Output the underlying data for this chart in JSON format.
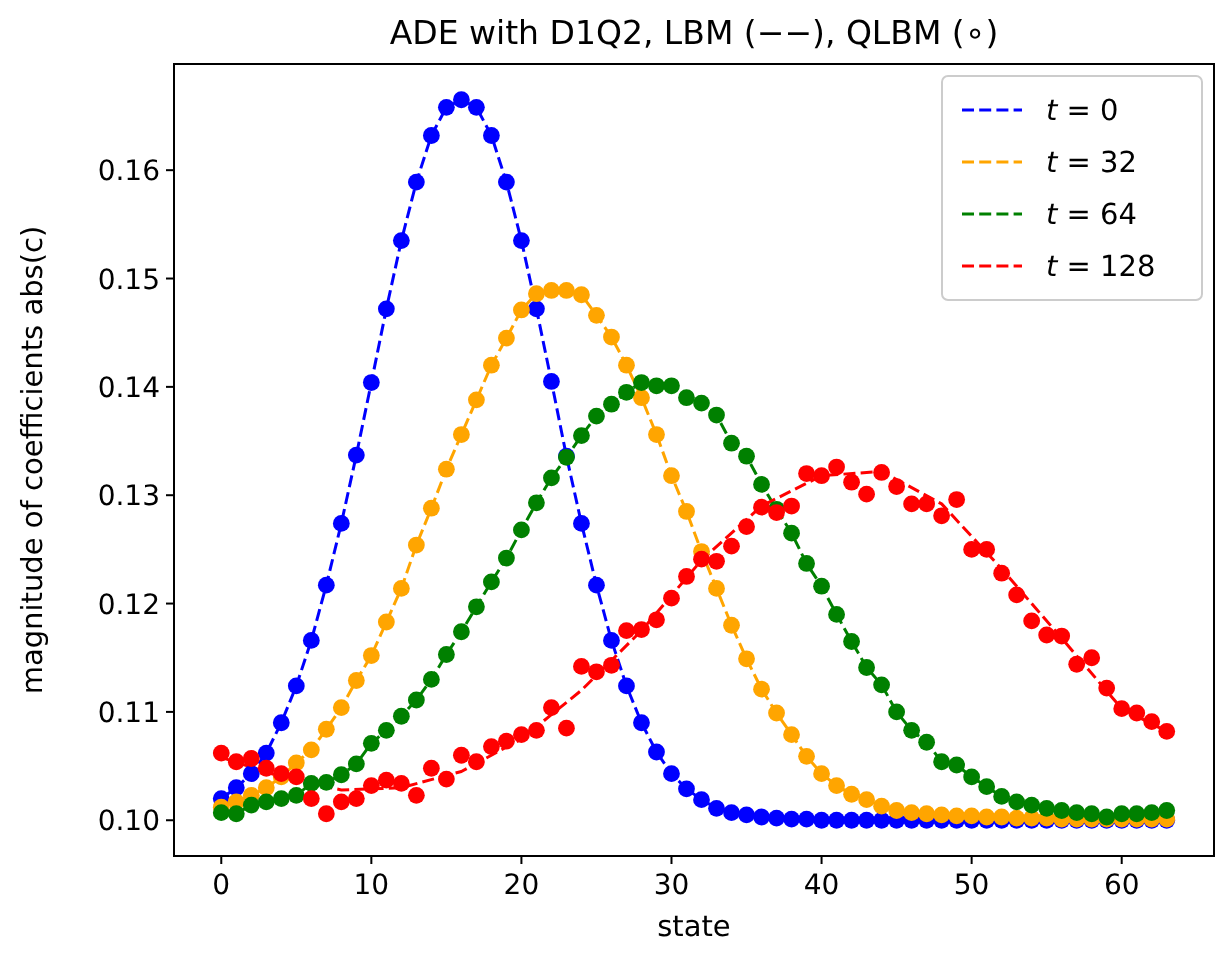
{
  "chart_data": {
    "type": "line",
    "title": "ADE with D1Q2, LBM (−−), QLBM (∘)",
    "xlabel": "state",
    "ylabel": "magnitude of coefficients abs(c)",
    "x": [
      0,
      1,
      2,
      3,
      4,
      5,
      6,
      7,
      8,
      9,
      10,
      11,
      12,
      13,
      14,
      15,
      16,
      17,
      18,
      19,
      20,
      21,
      22,
      23,
      24,
      25,
      26,
      27,
      28,
      29,
      30,
      31,
      32,
      33,
      34,
      35,
      36,
      37,
      38,
      39,
      40,
      41,
      42,
      43,
      44,
      45,
      46,
      47,
      48,
      49,
      50,
      51,
      52,
      53,
      54,
      55,
      56,
      57,
      58,
      59,
      60,
      61,
      62,
      63
    ],
    "xlim": [
      -3.15,
      66.15
    ],
    "xticks": [
      0,
      10,
      20,
      30,
      40,
      50,
      60
    ],
    "ylim": [
      0.0967,
      0.1698
    ],
    "yticks": [
      {
        "value": 0.1,
        "label": "0.10"
      },
      {
        "value": 0.11,
        "label": "0.11"
      },
      {
        "value": 0.12,
        "label": "0.12"
      },
      {
        "value": 0.13,
        "label": "0.13"
      },
      {
        "value": 0.14,
        "label": "0.14"
      },
      {
        "value": 0.15,
        "label": "0.15"
      },
      {
        "value": 0.16,
        "label": "0.16"
      }
    ],
    "grid": false,
    "legend": "top right",
    "series": [
      {
        "name": "t = 0",
        "color": "#0000ff",
        "line_style": "dashed",
        "marker": "none",
        "values": [
          0.102,
          0.103,
          0.1043,
          0.1062,
          0.109,
          0.1124,
          0.1166,
          0.1217,
          0.1274,
          0.1337,
          0.1404,
          0.1472,
          0.1535,
          0.1589,
          0.1632,
          0.1658,
          0.1665,
          0.1658,
          0.1632,
          0.1589,
          0.1535,
          0.1472,
          0.1405,
          0.1336,
          0.1274,
          0.1217,
          0.1166,
          0.1124,
          0.109,
          0.1063,
          0.1043,
          0.1029,
          0.1019,
          0.1011,
          0.1007,
          0.1005,
          0.1003,
          0.1002,
          0.1001,
          0.1001,
          0.1,
          0.1,
          0.1,
          0.1,
          0.1,
          0.1,
          0.1,
          0.1,
          0.1,
          0.1,
          0.1,
          0.1,
          0.1,
          0.1,
          0.1,
          0.1,
          0.1,
          0.1,
          0.1,
          0.1,
          0.1,
          0.1,
          0.1,
          0.1
        ]
      },
      {
        "name": "t = 32",
        "color": "#ffa500",
        "line_style": "dashed",
        "marker": "none",
        "values": [
          0.1012,
          0.1017,
          0.1023,
          0.103,
          0.104,
          0.1053,
          0.1065,
          0.1084,
          0.1104,
          0.1129,
          0.1152,
          0.1183,
          0.1214,
          0.1254,
          0.1288,
          0.1324,
          0.1356,
          0.1388,
          0.142,
          0.1445,
          0.1471,
          0.1486,
          0.1489,
          0.1489,
          0.1485,
          0.1466,
          0.1446,
          0.142,
          0.139,
          0.1356,
          0.1318,
          0.1285,
          0.1248,
          0.1214,
          0.118,
          0.1149,
          0.1121,
          0.1099,
          0.1079,
          0.1059,
          0.1043,
          0.1032,
          0.1024,
          0.1019,
          0.1013,
          0.1009,
          0.1007,
          0.1006,
          0.1005,
          0.1004,
          0.1004,
          0.1003,
          0.1003,
          0.1002,
          0.1002,
          0.1002,
          0.1001,
          0.1001,
          0.1001,
          0.1001,
          0.1001,
          0.1001,
          0.1001,
          0.1001
        ]
      },
      {
        "name": "t = 64",
        "color": "#008000",
        "line_style": "dashed",
        "marker": "none",
        "values": [
          0.1007,
          0.1006,
          0.1014,
          0.1017,
          0.102,
          0.1023,
          0.1034,
          0.1035,
          0.1042,
          0.1052,
          0.1071,
          0.1083,
          0.1096,
          0.1111,
          0.113,
          0.1153,
          0.1174,
          0.1197,
          0.122,
          0.1242,
          0.1268,
          0.1293,
          0.1316,
          0.1335,
          0.1355,
          0.1373,
          0.1384,
          0.1395,
          0.1404,
          0.1401,
          0.1401,
          0.139,
          0.1385,
          0.1374,
          0.1348,
          0.1336,
          0.131,
          0.1287,
          0.1265,
          0.1237,
          0.1216,
          0.119,
          0.1165,
          0.1141,
          0.1125,
          0.11,
          0.1083,
          0.1072,
          0.1054,
          0.1051,
          0.104,
          0.1031,
          0.1022,
          0.1017,
          0.1014,
          0.1011,
          0.1009,
          0.1007,
          0.1006,
          0.1003,
          0.1006,
          0.1006,
          0.1007,
          0.1009
        ]
      },
      {
        "name": "t = 128",
        "color": "#ff0000",
        "line_style": "dashed",
        "marker": "none",
        "x": [
          0,
          4,
          8,
          12,
          16,
          20,
          24,
          28,
          32,
          36,
          40,
          44,
          48,
          52,
          56,
          60,
          63
        ],
        "values": [
          0.1058,
          0.104,
          0.1028,
          0.103,
          0.1045,
          0.1075,
          0.112,
          0.1175,
          0.124,
          0.129,
          0.1318,
          0.1322,
          0.1292,
          0.1232,
          0.1168,
          0.1103,
          0.1082
        ]
      },
      {
        "type": "scatter",
        "color": "#0000ff",
        "marker": "circle",
        "values": [
          0.102,
          0.103,
          0.1043,
          0.1062,
          0.109,
          0.1124,
          0.1166,
          0.1217,
          0.1274,
          0.1337,
          0.1404,
          0.1472,
          0.1535,
          0.1589,
          0.1632,
          0.1658,
          0.1665,
          0.1658,
          0.1632,
          0.1589,
          0.1535,
          0.1472,
          0.1405,
          0.1336,
          0.1274,
          0.1217,
          0.1166,
          0.1124,
          0.109,
          0.1063,
          0.1043,
          0.1029,
          0.1019,
          0.1011,
          0.1007,
          0.1005,
          0.1003,
          0.1002,
          0.1001,
          0.1001,
          0.1,
          0.1,
          0.1,
          0.1,
          0.1,
          0.1,
          0.1,
          0.1,
          0.1,
          0.1,
          0.1,
          0.1,
          0.1,
          0.1,
          0.1,
          0.1,
          0.1,
          0.1,
          0.1,
          0.1,
          0.1,
          0.1,
          0.1,
          0.1
        ]
      },
      {
        "type": "scatter",
        "color": "#ffa500",
        "marker": "circle",
        "values": [
          0.1012,
          0.1017,
          0.1023,
          0.103,
          0.104,
          0.1053,
          0.1065,
          0.1084,
          0.1104,
          0.1129,
          0.1152,
          0.1183,
          0.1214,
          0.1254,
          0.1288,
          0.1324,
          0.1356,
          0.1388,
          0.142,
          0.1445,
          0.1471,
          0.1486,
          0.1489,
          0.1489,
          0.1485,
          0.1466,
          0.1446,
          0.142,
          0.139,
          0.1356,
          0.1318,
          0.1285,
          0.1248,
          0.1214,
          0.118,
          0.1149,
          0.1121,
          0.1099,
          0.1079,
          0.1059,
          0.1043,
          0.1032,
          0.1024,
          0.1019,
          0.1013,
          0.1009,
          0.1007,
          0.1006,
          0.1005,
          0.1004,
          0.1004,
          0.1003,
          0.1003,
          0.1002,
          0.1002,
          0.1002,
          0.1001,
          0.1001,
          0.1001,
          0.1001,
          0.1001,
          0.1001,
          0.1001,
          0.1001
        ]
      },
      {
        "type": "scatter",
        "color": "#008000",
        "marker": "circle",
        "values": [
          0.1007,
          0.1006,
          0.1014,
          0.1017,
          0.102,
          0.1023,
          0.1034,
          0.1035,
          0.1042,
          0.1052,
          0.1071,
          0.1083,
          0.1096,
          0.1111,
          0.113,
          0.1153,
          0.1174,
          0.1197,
          0.122,
          0.1242,
          0.1268,
          0.1293,
          0.1316,
          0.1335,
          0.1355,
          0.1373,
          0.1384,
          0.1395,
          0.1404,
          0.1401,
          0.1401,
          0.139,
          0.1385,
          0.1374,
          0.1348,
          0.1336,
          0.131,
          0.1287,
          0.1265,
          0.1237,
          0.1216,
          0.119,
          0.1165,
          0.1141,
          0.1125,
          0.11,
          0.1083,
          0.1072,
          0.1054,
          0.1051,
          0.104,
          0.1031,
          0.1022,
          0.1017,
          0.1014,
          0.1011,
          0.1009,
          0.1007,
          0.1006,
          0.1003,
          0.1006,
          0.1006,
          0.1007,
          0.1009
        ]
      },
      {
        "type": "scatter",
        "color": "#ff0000",
        "marker": "circle",
        "values": [
          0.1062,
          0.1054,
          0.1057,
          0.1048,
          0.1043,
          0.104,
          0.102,
          0.1006,
          0.1017,
          0.102,
          0.1032,
          0.1037,
          0.1034,
          0.1023,
          0.1048,
          0.1038,
          0.106,
          0.1054,
          0.1068,
          0.1073,
          0.1079,
          0.1083,
          0.1104,
          0.1085,
          0.1142,
          0.1137,
          0.1143,
          0.1175,
          0.1176,
          0.1185,
          0.1205,
          0.1225,
          0.1241,
          0.1239,
          0.1253,
          0.1271,
          0.1289,
          0.1284,
          0.129,
          0.132,
          0.1318,
          0.1326,
          0.1312,
          0.1301,
          0.1321,
          0.1308,
          0.1292,
          0.1292,
          0.1281,
          0.1296,
          0.125,
          0.125,
          0.1228,
          0.1208,
          0.1184,
          0.1171,
          0.117,
          0.1144,
          0.115,
          0.1122,
          0.1103,
          0.1099,
          0.1091,
          0.1082
        ]
      }
    ]
  }
}
